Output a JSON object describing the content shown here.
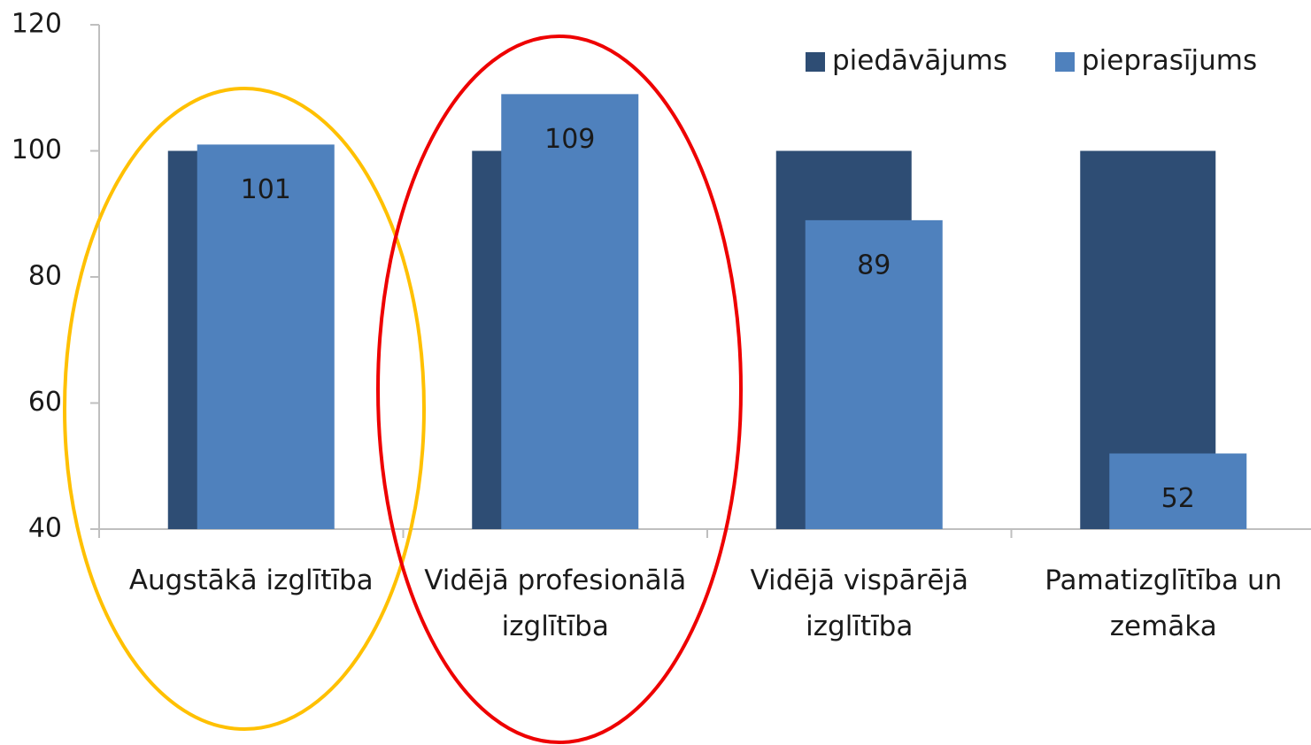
{
  "chart_data": {
    "type": "bar",
    "categories": [
      "Augstākā izglītība",
      "Vidējā profesionālā izglītība",
      "Vidējā vispārējā izglītība",
      "Pamatizglītība un zemāka"
    ],
    "series": [
      {
        "name": "piedāvājums",
        "color": "#2e4d74",
        "values": [
          100,
          100,
          100,
          100
        ]
      },
      {
        "name": "pieprasījums",
        "color": "#4f81bd",
        "values": [
          101,
          109,
          89,
          52
        ]
      }
    ],
    "ylim": [
      40,
      120
    ],
    "yticks": [
      40,
      60,
      80,
      100,
      120
    ],
    "grid": false,
    "legend": "top-right"
  }
}
